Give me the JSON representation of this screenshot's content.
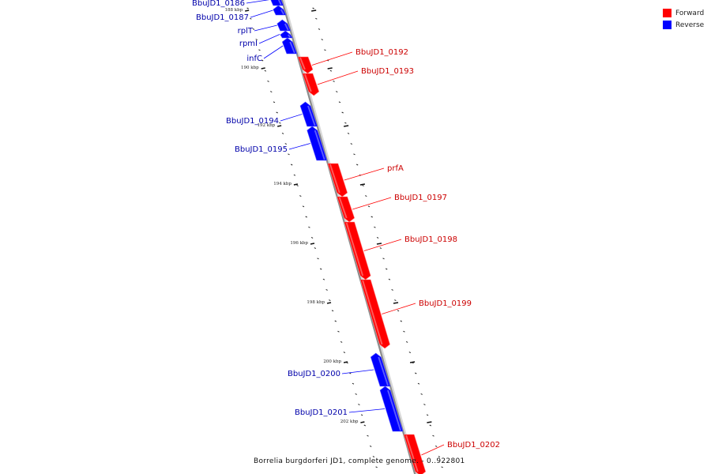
{
  "colors": {
    "forward": "#ff0000",
    "reverse": "#0000ff",
    "backbone": "#8c8c8c"
  },
  "legend": [
    {
      "label": "Forward",
      "color": "#ff0000"
    },
    {
      "label": "Reverse",
      "color": "#0000ff"
    }
  ],
  "caption": "Borrelia burgdorferi JD1, complete genome.  - 0..922801",
  "ticks": [
    "188 kbp",
    "190 kbp",
    "192 kbp",
    "194 kbp",
    "196 kbp",
    "198 kbp",
    "200 kbp",
    "202 kbp"
  ],
  "genes": [
    {
      "label": "BbuJD1_0186",
      "strand": "reverse"
    },
    {
      "label": "BbuJD1_0187",
      "strand": "reverse"
    },
    {
      "label": "rplT",
      "strand": "reverse"
    },
    {
      "label": "rpmI",
      "strand": "reverse"
    },
    {
      "label": "infC",
      "strand": "reverse"
    },
    {
      "label": "BbuJD1_0192",
      "strand": "forward"
    },
    {
      "label": "BbuJD1_0193",
      "strand": "forward"
    },
    {
      "label": "BbuJD1_0194",
      "strand": "reverse"
    },
    {
      "label": "BbuJD1_0195",
      "strand": "reverse"
    },
    {
      "label": "prfA",
      "strand": "forward"
    },
    {
      "label": "BbuJD1_0197",
      "strand": "forward"
    },
    {
      "label": "BbuJD1_0198",
      "strand": "forward"
    },
    {
      "label": "BbuJD1_0199",
      "strand": "forward"
    },
    {
      "label": "BbuJD1_0200",
      "strand": "reverse"
    },
    {
      "label": "BbuJD1_0201",
      "strand": "reverse"
    },
    {
      "label": "BbuJD1_0202",
      "strand": "forward"
    }
  ]
}
